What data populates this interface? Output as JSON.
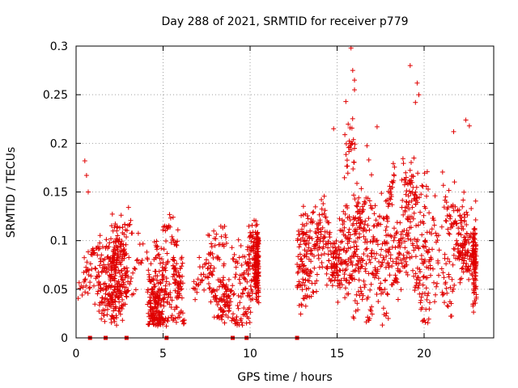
{
  "chart_data": {
    "type": "scatter",
    "title": "Day 288 of 2021, SRMTID for receiver p779",
    "xlabel": "GPS time / hours",
    "ylabel": "SRMTID / TECUs",
    "xlim": [
      0,
      24
    ],
    "ylim": [
      0,
      0.3
    ],
    "xticks": [
      0,
      5,
      10,
      15,
      20
    ],
    "xtick_labels": [
      "0",
      "5",
      "10",
      "15",
      "20"
    ],
    "yticks": [
      0,
      0.05,
      0.1,
      0.15,
      0.2,
      0.25,
      0.3
    ],
    "ytick_labels": [
      "0",
      "0.05",
      "0.1",
      "0.15",
      "0.2",
      "0.25",
      "0.3"
    ],
    "grid": true,
    "marker": "+",
    "color": "#e00000",
    "series": [
      {
        "name": "SRMTID",
        "segments": [
          {
            "x_start": 0.0,
            "x_end": 10.5,
            "mean": 0.062,
            "spread": 0.022,
            "noise": 0.018,
            "count": 1150
          },
          {
            "x_start": 12.7,
            "x_end": 23.0,
            "mean": 0.095,
            "spread": 0.03,
            "noise": 0.028,
            "count": 1150
          }
        ],
        "outliers": [
          {
            "x": 0.5,
            "y": 0.182
          },
          {
            "x": 0.6,
            "y": 0.167
          },
          {
            "x": 0.7,
            "y": 0.15
          },
          {
            "x": 15.8,
            "y": 0.298
          },
          {
            "x": 15.9,
            "y": 0.275
          },
          {
            "x": 16.0,
            "y": 0.265
          },
          {
            "x": 16.0,
            "y": 0.255
          },
          {
            "x": 15.5,
            "y": 0.243
          },
          {
            "x": 19.2,
            "y": 0.28
          },
          {
            "x": 19.6,
            "y": 0.262
          },
          {
            "x": 19.7,
            "y": 0.25
          },
          {
            "x": 19.5,
            "y": 0.242
          },
          {
            "x": 22.4,
            "y": 0.224
          },
          {
            "x": 22.6,
            "y": 0.218
          },
          {
            "x": 17.3,
            "y": 0.217
          },
          {
            "x": 14.8,
            "y": 0.215
          },
          {
            "x": 21.7,
            "y": 0.212
          }
        ]
      }
    ],
    "gap_markers_x": [
      0.8,
      1.7,
      2.9,
      5.2,
      9.0,
      9.8,
      12.7
    ]
  }
}
